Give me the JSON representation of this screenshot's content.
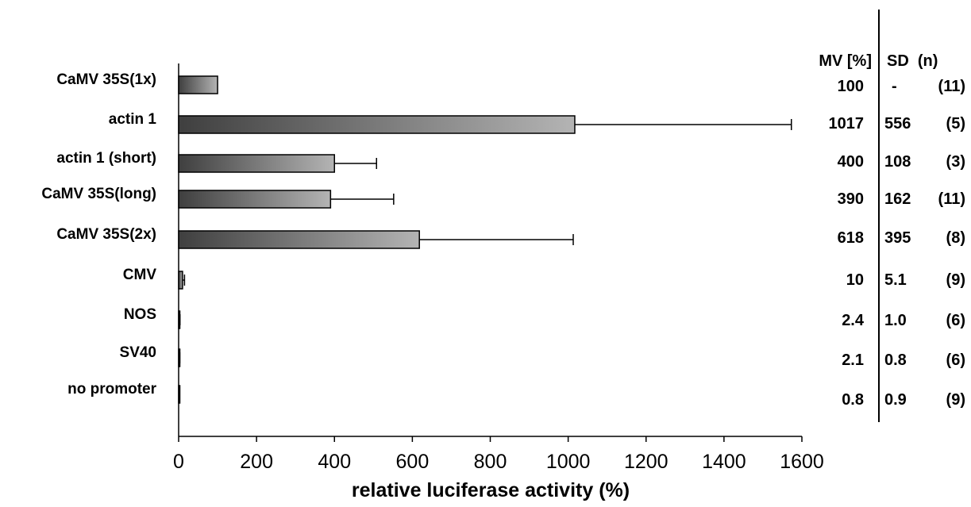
{
  "chart_data": {
    "type": "bar",
    "orientation": "horizontal",
    "categories": [
      "CaMV 35S(1x)",
      "actin 1",
      "actin 1 (short)",
      "CaMV 35S(long)",
      "CaMV 35S(2x)",
      "CMV",
      "NOS",
      "SV40",
      "no promoter"
    ],
    "series": [
      {
        "values": [
          100,
          1017,
          400,
          390,
          618,
          10,
          2.4,
          2.1,
          0.8
        ],
        "error": [
          0,
          556,
          108,
          162,
          395,
          5.1,
          1.0,
          0.8,
          0.9
        ]
      }
    ],
    "xlabel": "relative luciferase activity (%)",
    "xlim": [
      0,
      1600
    ],
    "xticks": [
      0,
      200,
      400,
      600,
      800,
      1000,
      1200,
      1400,
      1600
    ],
    "xtick_labels": [
      "0",
      "200",
      "400",
      "600",
      "800",
      "1000",
      "1200",
      "1400",
      "1600"
    ],
    "grid": false,
    "bar_color_start": "#3f3f3f",
    "bar_color_end": "#b4b4b4"
  },
  "table": {
    "headers": {
      "mv": "MV [%]",
      "sd_n": "SD  (n)"
    },
    "rows": [
      {
        "mv": "100",
        "sd": "-",
        "n": "(11)"
      },
      {
        "mv": "1017",
        "sd": "556",
        "n": "(5)"
      },
      {
        "mv": "400",
        "sd": "108",
        "n": "(3)"
      },
      {
        "mv": "390",
        "sd": "162",
        "n": "(11)"
      },
      {
        "mv": "618",
        "sd": "395",
        "n": "(8)"
      },
      {
        "mv": "10",
        "sd": "5.1",
        "n": "(9)"
      },
      {
        "mv": "2.4",
        "sd": "1.0",
        "n": "(6)"
      },
      {
        "mv": "2.1",
        "sd": "0.8",
        "n": "(6)"
      },
      {
        "mv": "0.8",
        "sd": "0.9",
        "n": "(9)"
      }
    ]
  }
}
